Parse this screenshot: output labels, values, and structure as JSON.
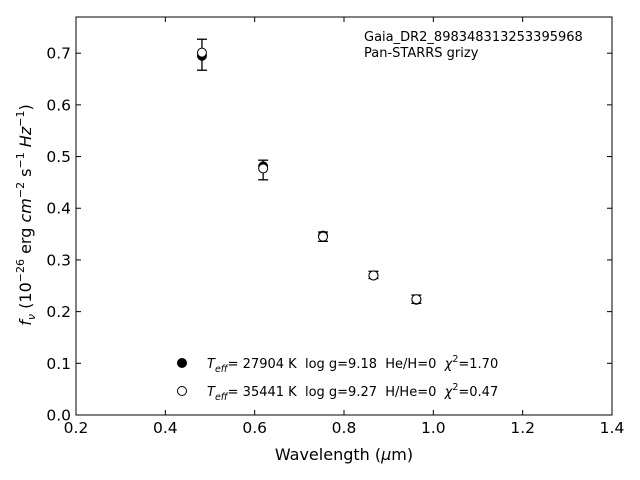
{
  "chart_data": {
    "type": "scatter",
    "xlabel": {
      "prefix": "Wavelength (",
      "symbol": "μ",
      "suffix": "m)"
    },
    "ylabel": {
      "sym": "f",
      "sub": "ν",
      "open": " (10",
      "exp1": "−26",
      "unit1": " erg ",
      "cm": "cm",
      "exp2": "−2",
      "s": " s",
      "exp3": "−1",
      "hz": " Hz",
      "exp4": "−1",
      "close": ")"
    },
    "xlim": [
      0.2,
      1.4
    ],
    "ylim": [
      0.0,
      0.77
    ],
    "xticks": [
      0.2,
      0.4,
      0.6,
      0.8,
      1.0,
      1.2,
      1.4
    ],
    "xtick_labels": [
      "0.2",
      "0.4",
      "0.6",
      "0.8",
      "1.0",
      "1.2",
      "1.4"
    ],
    "yticks": [
      0.0,
      0.1,
      0.2,
      0.3,
      0.4,
      0.5,
      0.6,
      0.7
    ],
    "ytick_labels": [
      "0.0",
      "0.1",
      "0.2",
      "0.3",
      "0.4",
      "0.5",
      "0.6",
      "0.7"
    ],
    "grid": false,
    "annotation_lines": [
      "Gaia_DR2_898348313253395968",
      "Pan-STARRS grizy"
    ],
    "errorbars": [
      {
        "x": 0.482,
        "y": 0.697,
        "yerr": 0.03
      },
      {
        "x": 0.619,
        "y": 0.474,
        "yerr": 0.019
      },
      {
        "x": 0.753,
        "y": 0.345,
        "yerr": 0.009
      },
      {
        "x": 0.866,
        "y": 0.271,
        "yerr": 0.007
      },
      {
        "x": 0.962,
        "y": 0.224,
        "yerr": 0.008
      }
    ],
    "series": [
      {
        "marker": "filled",
        "x": [
          0.482,
          0.619,
          0.753,
          0.866,
          0.962
        ],
        "y": [
          0.695,
          0.481,
          0.347,
          0.27,
          0.223
        ],
        "legend": {
          "T": "T",
          "eff": "eff",
          "main": "= 27904 K  log g=9.18  He/H=0  ",
          "chi": "χ",
          "exp": "2",
          "tail": "=1.70"
        }
      },
      {
        "marker": "open",
        "x": [
          0.482,
          0.619,
          0.753,
          0.866,
          0.962
        ],
        "y": [
          0.701,
          0.477,
          0.345,
          0.27,
          0.224
        ],
        "legend": {
          "T": "T",
          "eff": "eff",
          "main": "= 35441 K  log g=9.27  H/He=0  ",
          "chi": "χ",
          "exp": "2",
          "tail": "=0.47"
        }
      }
    ],
    "legend_placement": "lower-center"
  }
}
